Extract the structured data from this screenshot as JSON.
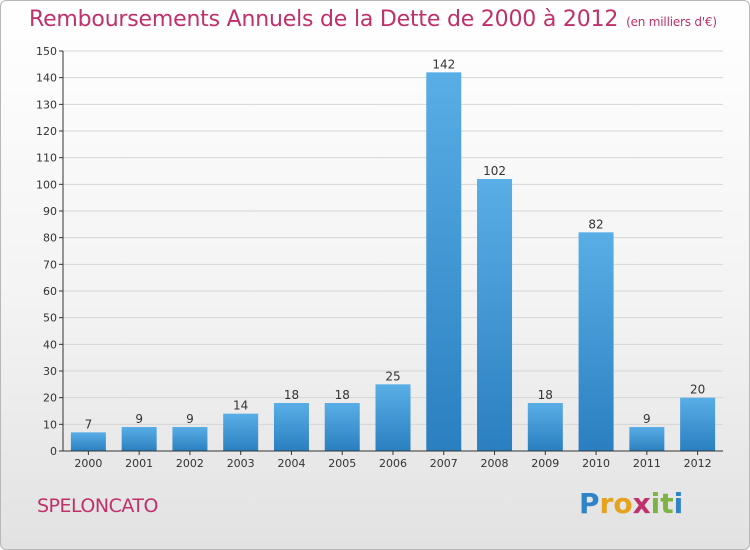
{
  "header": {
    "title": "Remboursements Annuels de la Dette de 2000 à 2012",
    "subtitle": "(en milliers d'€)"
  },
  "footer": {
    "commune": "SPELONCATO",
    "logo_text": "Proxiti"
  },
  "colors": {
    "title": "#c0306a",
    "bar_top": "#5aaee6",
    "bar_bottom": "#2a7fc0",
    "grid": "#d6d6d6",
    "axis": "#333333",
    "logo_letters": [
      "#2f83c8",
      "#e6a21c",
      "#e6a21c",
      "#c0306a",
      "#7cb342",
      "#7cb342",
      "#2f83c8"
    ]
  },
  "chart_data": {
    "type": "bar",
    "title": "Remboursements Annuels de la Dette de 2000 à 2012",
    "subtitle": "(en milliers d'€)",
    "xlabel": "",
    "ylabel": "",
    "categories": [
      "2000",
      "2001",
      "2002",
      "2003",
      "2004",
      "2005",
      "2006",
      "2007",
      "2008",
      "2009",
      "2010",
      "2011",
      "2012"
    ],
    "values": [
      7,
      9,
      9,
      14,
      18,
      18,
      25,
      142,
      102,
      18,
      82,
      9,
      20
    ],
    "ylim": [
      0,
      150
    ],
    "yticks": [
      0,
      10,
      20,
      30,
      40,
      50,
      60,
      70,
      80,
      90,
      100,
      110,
      120,
      130,
      140,
      150
    ],
    "grid": true,
    "legend": "none",
    "data_labels": true
  }
}
